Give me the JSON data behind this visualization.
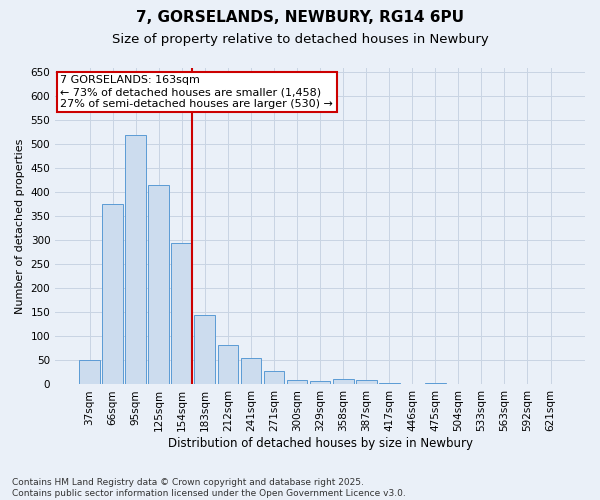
{
  "title": "7, GORSELANDS, NEWBURY, RG14 6PU",
  "subtitle": "Size of property relative to detached houses in Newbury",
  "xlabel": "Distribution of detached houses by size in Newbury",
  "ylabel": "Number of detached properties",
  "categories": [
    "37sqm",
    "66sqm",
    "95sqm",
    "125sqm",
    "154sqm",
    "183sqm",
    "212sqm",
    "241sqm",
    "271sqm",
    "300sqm",
    "329sqm",
    "358sqm",
    "387sqm",
    "417sqm",
    "446sqm",
    "475sqm",
    "504sqm",
    "533sqm",
    "563sqm",
    "592sqm",
    "621sqm"
  ],
  "values": [
    50,
    375,
    520,
    415,
    295,
    145,
    83,
    55,
    27,
    10,
    8,
    11,
    10,
    2,
    0,
    3,
    0,
    1,
    0,
    0,
    0
  ],
  "bar_color": "#ccdcee",
  "bar_edge_color": "#5b9bd5",
  "vline_color": "#cc0000",
  "vline_index": 4,
  "annotation_text": "7 GORSELANDS: 163sqm\n← 73% of detached houses are smaller (1,458)\n27% of semi-detached houses are larger (530) →",
  "annotation_box_facecolor": "#ffffff",
  "annotation_box_edgecolor": "#cc0000",
  "ylim": [
    0,
    660
  ],
  "yticks": [
    0,
    50,
    100,
    150,
    200,
    250,
    300,
    350,
    400,
    450,
    500,
    550,
    600,
    650
  ],
  "grid_color": "#c8d4e3",
  "bg_color": "#eaf0f8",
  "footer": "Contains HM Land Registry data © Crown copyright and database right 2025.\nContains public sector information licensed under the Open Government Licence v3.0.",
  "title_fontsize": 11,
  "subtitle_fontsize": 9.5,
  "xlabel_fontsize": 8.5,
  "ylabel_fontsize": 8,
  "tick_fontsize": 7.5,
  "annotation_fontsize": 8,
  "footer_fontsize": 6.5
}
